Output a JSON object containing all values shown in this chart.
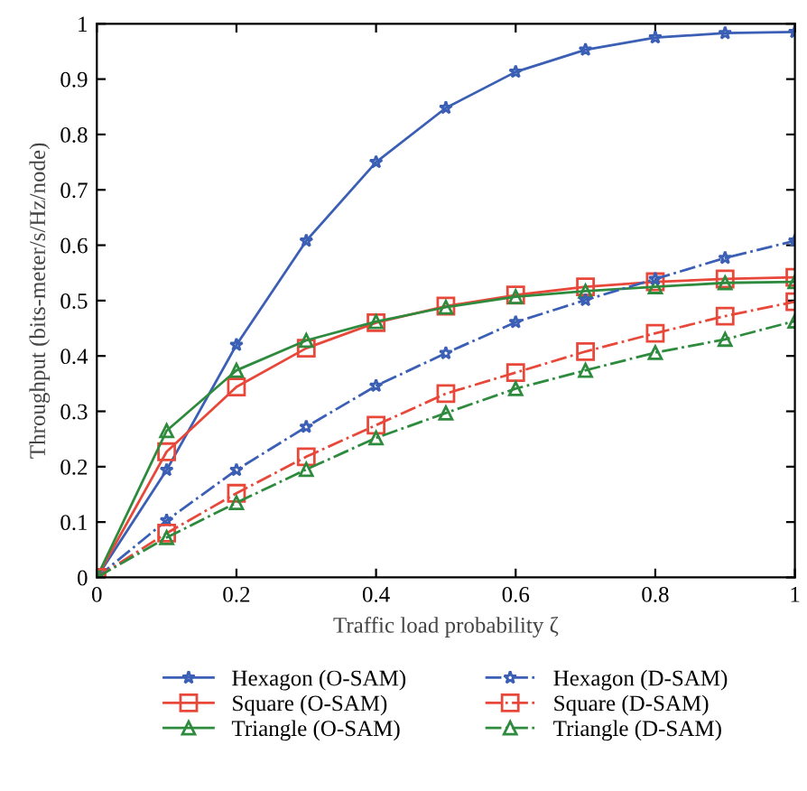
{
  "chart_data": {
    "type": "line",
    "xlabel": "Traffic load probability ζ",
    "ylabel": "Throughput (bits-meter/s/Hz/node)",
    "x": [
      0,
      0.1,
      0.2,
      0.3,
      0.4,
      0.5,
      0.6,
      0.7,
      0.8,
      0.9,
      1
    ],
    "xlim": [
      0,
      1
    ],
    "ylim": [
      0,
      1
    ],
    "xticks": [
      0,
      0.2,
      0.4,
      0.6,
      0.8,
      1
    ],
    "yticks": [
      0,
      0.1,
      0.2,
      0.3,
      0.4,
      0.5,
      0.6,
      0.7,
      0.8,
      0.9,
      1
    ],
    "grid": false,
    "legend": "bottom",
    "series": [
      {
        "name": "Hexagon (O-SAM)",
        "color": "#3a5fb5",
        "marker": "star",
        "line_style": "solid",
        "values": [
          0,
          0.194,
          0.42,
          0.608,
          0.75,
          0.848,
          0.913,
          0.953,
          0.975,
          0.983,
          0.985
        ]
      },
      {
        "name": "Square (O-SAM)",
        "color": "#e8483a",
        "marker": "square",
        "line_style": "solid",
        "values": [
          0,
          0.227,
          0.344,
          0.414,
          0.46,
          0.49,
          0.51,
          0.525,
          0.534,
          0.539,
          0.542
        ]
      },
      {
        "name": "Triangle (O-SAM)",
        "color": "#2e8b3e",
        "marker": "triangle",
        "line_style": "solid",
        "values": [
          0,
          0.265,
          0.374,
          0.428,
          0.462,
          0.488,
          0.507,
          0.517,
          0.525,
          0.532,
          0.534
        ]
      },
      {
        "name": "Hexagon (D-SAM)",
        "color": "#3a5fb5",
        "marker": "star",
        "line_style": "dashdot",
        "values": [
          0,
          0.103,
          0.194,
          0.272,
          0.346,
          0.405,
          0.461,
          0.501,
          0.539,
          0.577,
          0.608
        ]
      },
      {
        "name": "Square (D-SAM)",
        "color": "#e8483a",
        "marker": "square",
        "line_style": "dashdot",
        "values": [
          0,
          0.08,
          0.152,
          0.218,
          0.275,
          0.332,
          0.37,
          0.408,
          0.441,
          0.472,
          0.498
        ]
      },
      {
        "name": "Triangle (D-SAM)",
        "color": "#2e8b3e",
        "marker": "triangle",
        "line_style": "dashdot",
        "values": [
          0,
          0.072,
          0.135,
          0.195,
          0.252,
          0.297,
          0.341,
          0.374,
          0.406,
          0.43,
          0.463
        ]
      }
    ]
  }
}
